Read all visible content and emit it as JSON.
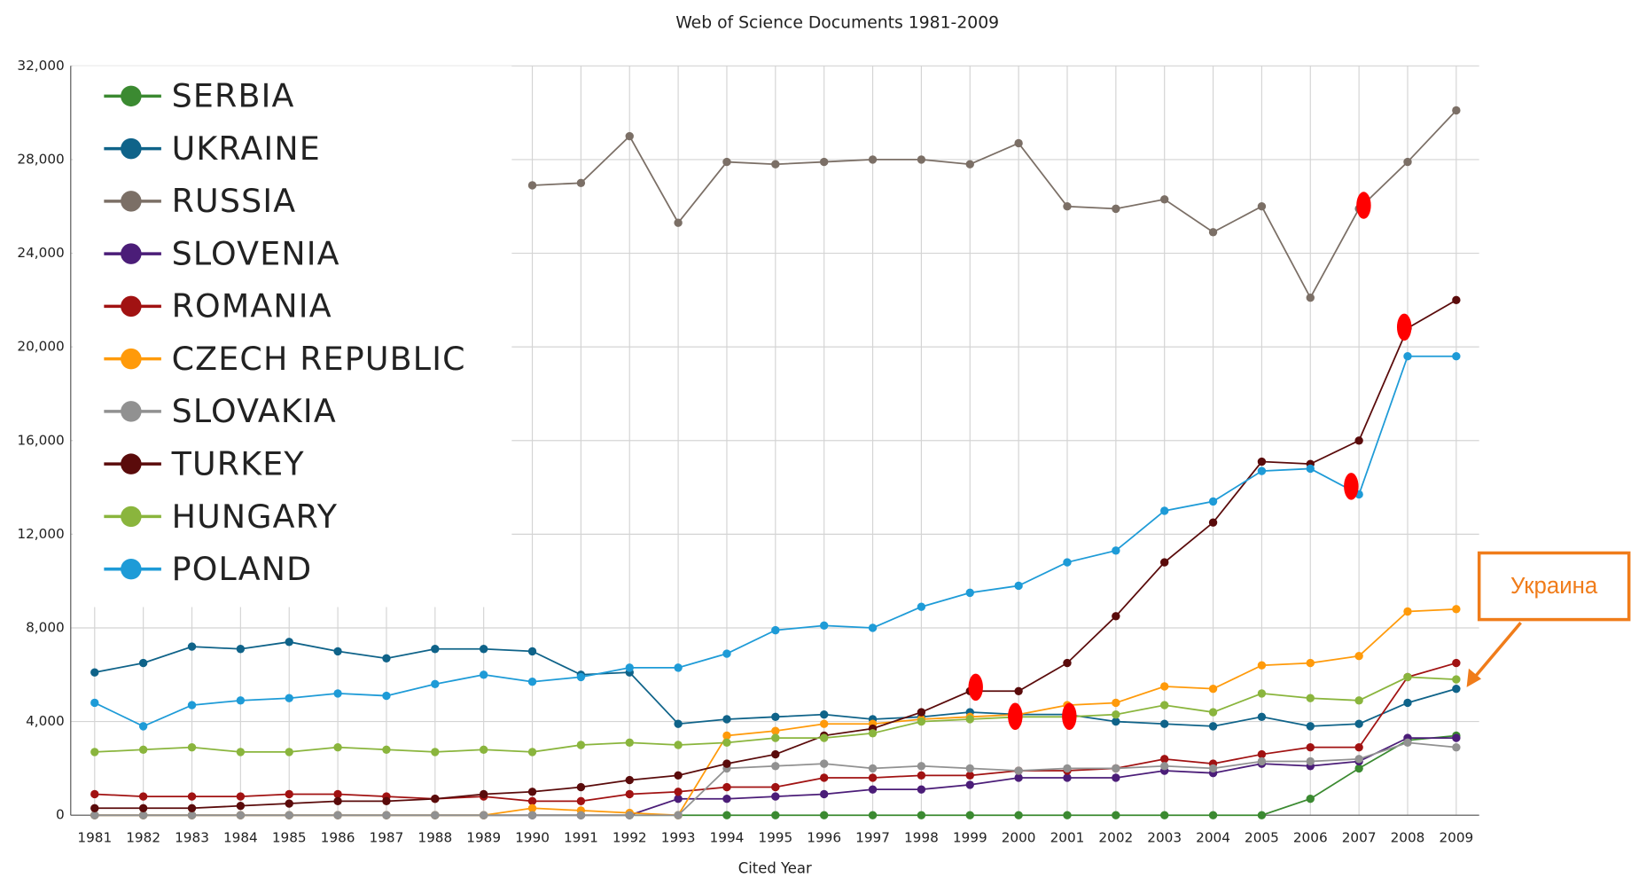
{
  "chart_data": {
    "type": "line",
    "title": "Web of Science Documents 1981-2009",
    "x_label": "Cited Year",
    "annotation": "Украина",
    "categories": [
      "1981",
      "1982",
      "1983",
      "1984",
      "1985",
      "1986",
      "1987",
      "1988",
      "1989",
      "1990",
      "1991",
      "1992",
      "1993",
      "1994",
      "1995",
      "1996",
      "1997",
      "1998",
      "1999",
      "2000",
      "2001",
      "2002",
      "2003",
      "2004",
      "2005",
      "2006",
      "2007",
      "2008",
      "2009"
    ],
    "ylim": [
      0,
      32000
    ],
    "yticks": [
      0,
      {
        "value": 4000,
        "label": "4,000"
      },
      {
        "value": 8000,
        "label": "8,000"
      },
      {
        "value": 12000,
        "label": "12,000"
      },
      {
        "value": 16000,
        "label": "16,000"
      },
      {
        "value": 20000,
        "label": "20,000"
      },
      {
        "value": 24000,
        "label": "24,000"
      },
      {
        "value": 28000,
        "label": "28,000"
      },
      {
        "value": 32000,
        "label": "32,000"
      }
    ],
    "grid": true,
    "legend": "upper left",
    "series": [
      {
        "name": "SERBIA",
        "color": "#3b8a31",
        "values": [
          0,
          0,
          0,
          0,
          0,
          0,
          0,
          0,
          0,
          0,
          0,
          0,
          0,
          0,
          0,
          0,
          0,
          0,
          0,
          0,
          0,
          0,
          0,
          0,
          0,
          700,
          2000,
          3200,
          3400
        ]
      },
      {
        "name": "UKRAINE",
        "color": "#0f6389",
        "values": [
          6100,
          6500,
          7200,
          7100,
          7400,
          7000,
          6700,
          7100,
          7100,
          7000,
          6000,
          6100,
          3900,
          4100,
          4200,
          4300,
          4100,
          4200,
          4400,
          4300,
          4300,
          4000,
          3900,
          3800,
          4200,
          3800,
          3900,
          4800,
          5400
        ]
      },
      {
        "name": "RUSSIA",
        "color": "#7b6f66",
        "values": [
          null,
          null,
          null,
          null,
          null,
          null,
          null,
          null,
          null,
          26900,
          27000,
          29000,
          25300,
          27900,
          27800,
          27900,
          28000,
          28000,
          27800,
          28700,
          26000,
          25900,
          26300,
          24900,
          26000,
          22100,
          25900,
          27900,
          30100
        ]
      },
      {
        "name": "SLOVENIA",
        "color": "#4b1d78",
        "values": [
          0,
          0,
          0,
          0,
          0,
          0,
          0,
          0,
          0,
          0,
          0,
          0,
          700,
          700,
          800,
          900,
          1100,
          1100,
          1300,
          1600,
          1600,
          1600,
          1900,
          1800,
          2200,
          2100,
          2300,
          3300,
          3300
        ]
      },
      {
        "name": "ROMANIA",
        "color": "#a11212",
        "values": [
          900,
          800,
          800,
          800,
          900,
          900,
          800,
          700,
          800,
          600,
          600,
          900,
          1000,
          1200,
          1200,
          1600,
          1600,
          1700,
          1700,
          1900,
          1900,
          2000,
          2400,
          2200,
          2600,
          2900,
          2900,
          5900,
          6500
        ]
      },
      {
        "name": "CZECH REPUBLIC",
        "color": "#ff9a0a",
        "values": [
          0,
          0,
          0,
          0,
          0,
          0,
          0,
          0,
          0,
          300,
          200,
          100,
          0,
          3400,
          3600,
          3900,
          3900,
          4100,
          4200,
          4300,
          4700,
          4800,
          5500,
          5400,
          6400,
          6500,
          6800,
          8700,
          8800
        ]
      },
      {
        "name": "SLOVAKIA",
        "color": "#919191",
        "values": [
          0,
          0,
          0,
          0,
          0,
          0,
          0,
          0,
          0,
          0,
          0,
          0,
          0,
          2000,
          2100,
          2200,
          2000,
          2100,
          2000,
          1900,
          2000,
          2000,
          2100,
          2000,
          2300,
          2300,
          2400,
          3100,
          2900
        ]
      },
      {
        "name": "TURKEY",
        "color": "#5a0b0b",
        "values": [
          300,
          300,
          300,
          400,
          500,
          600,
          600,
          700,
          900,
          1000,
          1200,
          1500,
          1700,
          2200,
          2600,
          3400,
          3700,
          4400,
          5300,
          5300,
          6500,
          8500,
          10800,
          12500,
          15100,
          15000,
          16000,
          20800,
          22000
        ]
      },
      {
        "name": "HUNGARY",
        "color": "#8ab53d",
        "values": [
          2700,
          2800,
          2900,
          2700,
          2700,
          2900,
          2800,
          2700,
          2800,
          2700,
          3000,
          3100,
          3000,
          3100,
          3300,
          3300,
          3500,
          4000,
          4100,
          4200,
          4200,
          4300,
          4700,
          4400,
          5200,
          5000,
          4900,
          5900,
          5800
        ]
      },
      {
        "name": "POLAND",
        "color": "#1e9bd7",
        "values": [
          4800,
          3800,
          4700,
          4900,
          5000,
          5200,
          5100,
          5600,
          6000,
          5700,
          5900,
          6300,
          6300,
          6900,
          7900,
          8100,
          8000,
          8900,
          9500,
          9800,
          10800,
          11300,
          13000,
          13400,
          14700,
          14800,
          13700,
          19600,
          19600
        ]
      }
    ]
  }
}
